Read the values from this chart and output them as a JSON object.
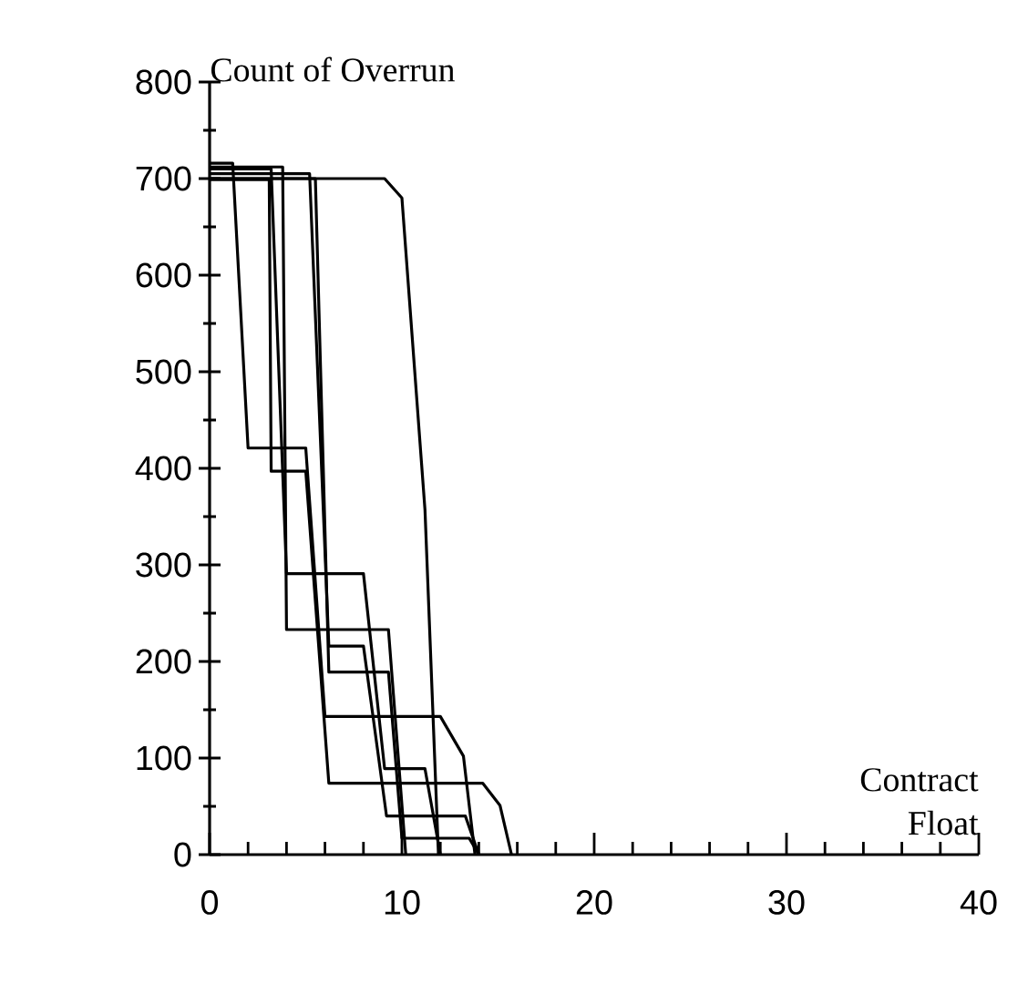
{
  "chart_data": {
    "type": "line",
    "ylabel": "Count of Overrun",
    "xlabel": "Contract Float",
    "xlim": [
      0,
      40
    ],
    "xticks": [
      0,
      10,
      20,
      30,
      40
    ],
    "ylim": [
      0,
      800
    ],
    "yticks": [
      0,
      100,
      200,
      300,
      400,
      500,
      600,
      700,
      800
    ],
    "grid": false,
    "marker": "none",
    "line_style": "solid",
    "series": [
      {
        "color": "#000000",
        "x": [
          0,
          9.1,
          10,
          11.2,
          11.9
        ],
        "values": [
          700,
          700,
          680,
          357,
          0
        ]
      },
      {
        "color": "#000000",
        "x": [
          0,
          1.2,
          2,
          5,
          6,
          12,
          13.2,
          13.8
        ],
        "values": [
          716,
          716,
          421,
          421,
          143,
          143,
          102,
          0
        ]
      },
      {
        "color": "#000000",
        "x": [
          0,
          3.2,
          4,
          8,
          9.1,
          11.2,
          12
        ],
        "values": [
          710,
          710,
          291,
          291,
          89,
          89,
          0
        ]
      },
      {
        "color": "#000000",
        "x": [
          0,
          3.1,
          3.2,
          5,
          6.2,
          14.2,
          15.1,
          15.7
        ],
        "values": [
          699,
          699,
          397,
          397,
          74,
          74,
          51,
          0
        ]
      },
      {
        "color": "#000000",
        "x": [
          0,
          5.2,
          6.2,
          8,
          9.2,
          13.3,
          14
        ],
        "values": [
          705,
          705,
          216,
          216,
          40,
          40,
          0
        ]
      },
      {
        "color": "#000000",
        "x": [
          0,
          5.5,
          6.2,
          9.3,
          10,
          13.5,
          14
        ],
        "values": [
          700,
          700,
          189,
          189,
          17,
          17,
          0
        ]
      },
      {
        "color": "#000000",
        "x": [
          0,
          3.8,
          4,
          9.3,
          10.2
        ],
        "values": [
          712,
          712,
          233,
          233,
          0
        ]
      }
    ]
  }
}
